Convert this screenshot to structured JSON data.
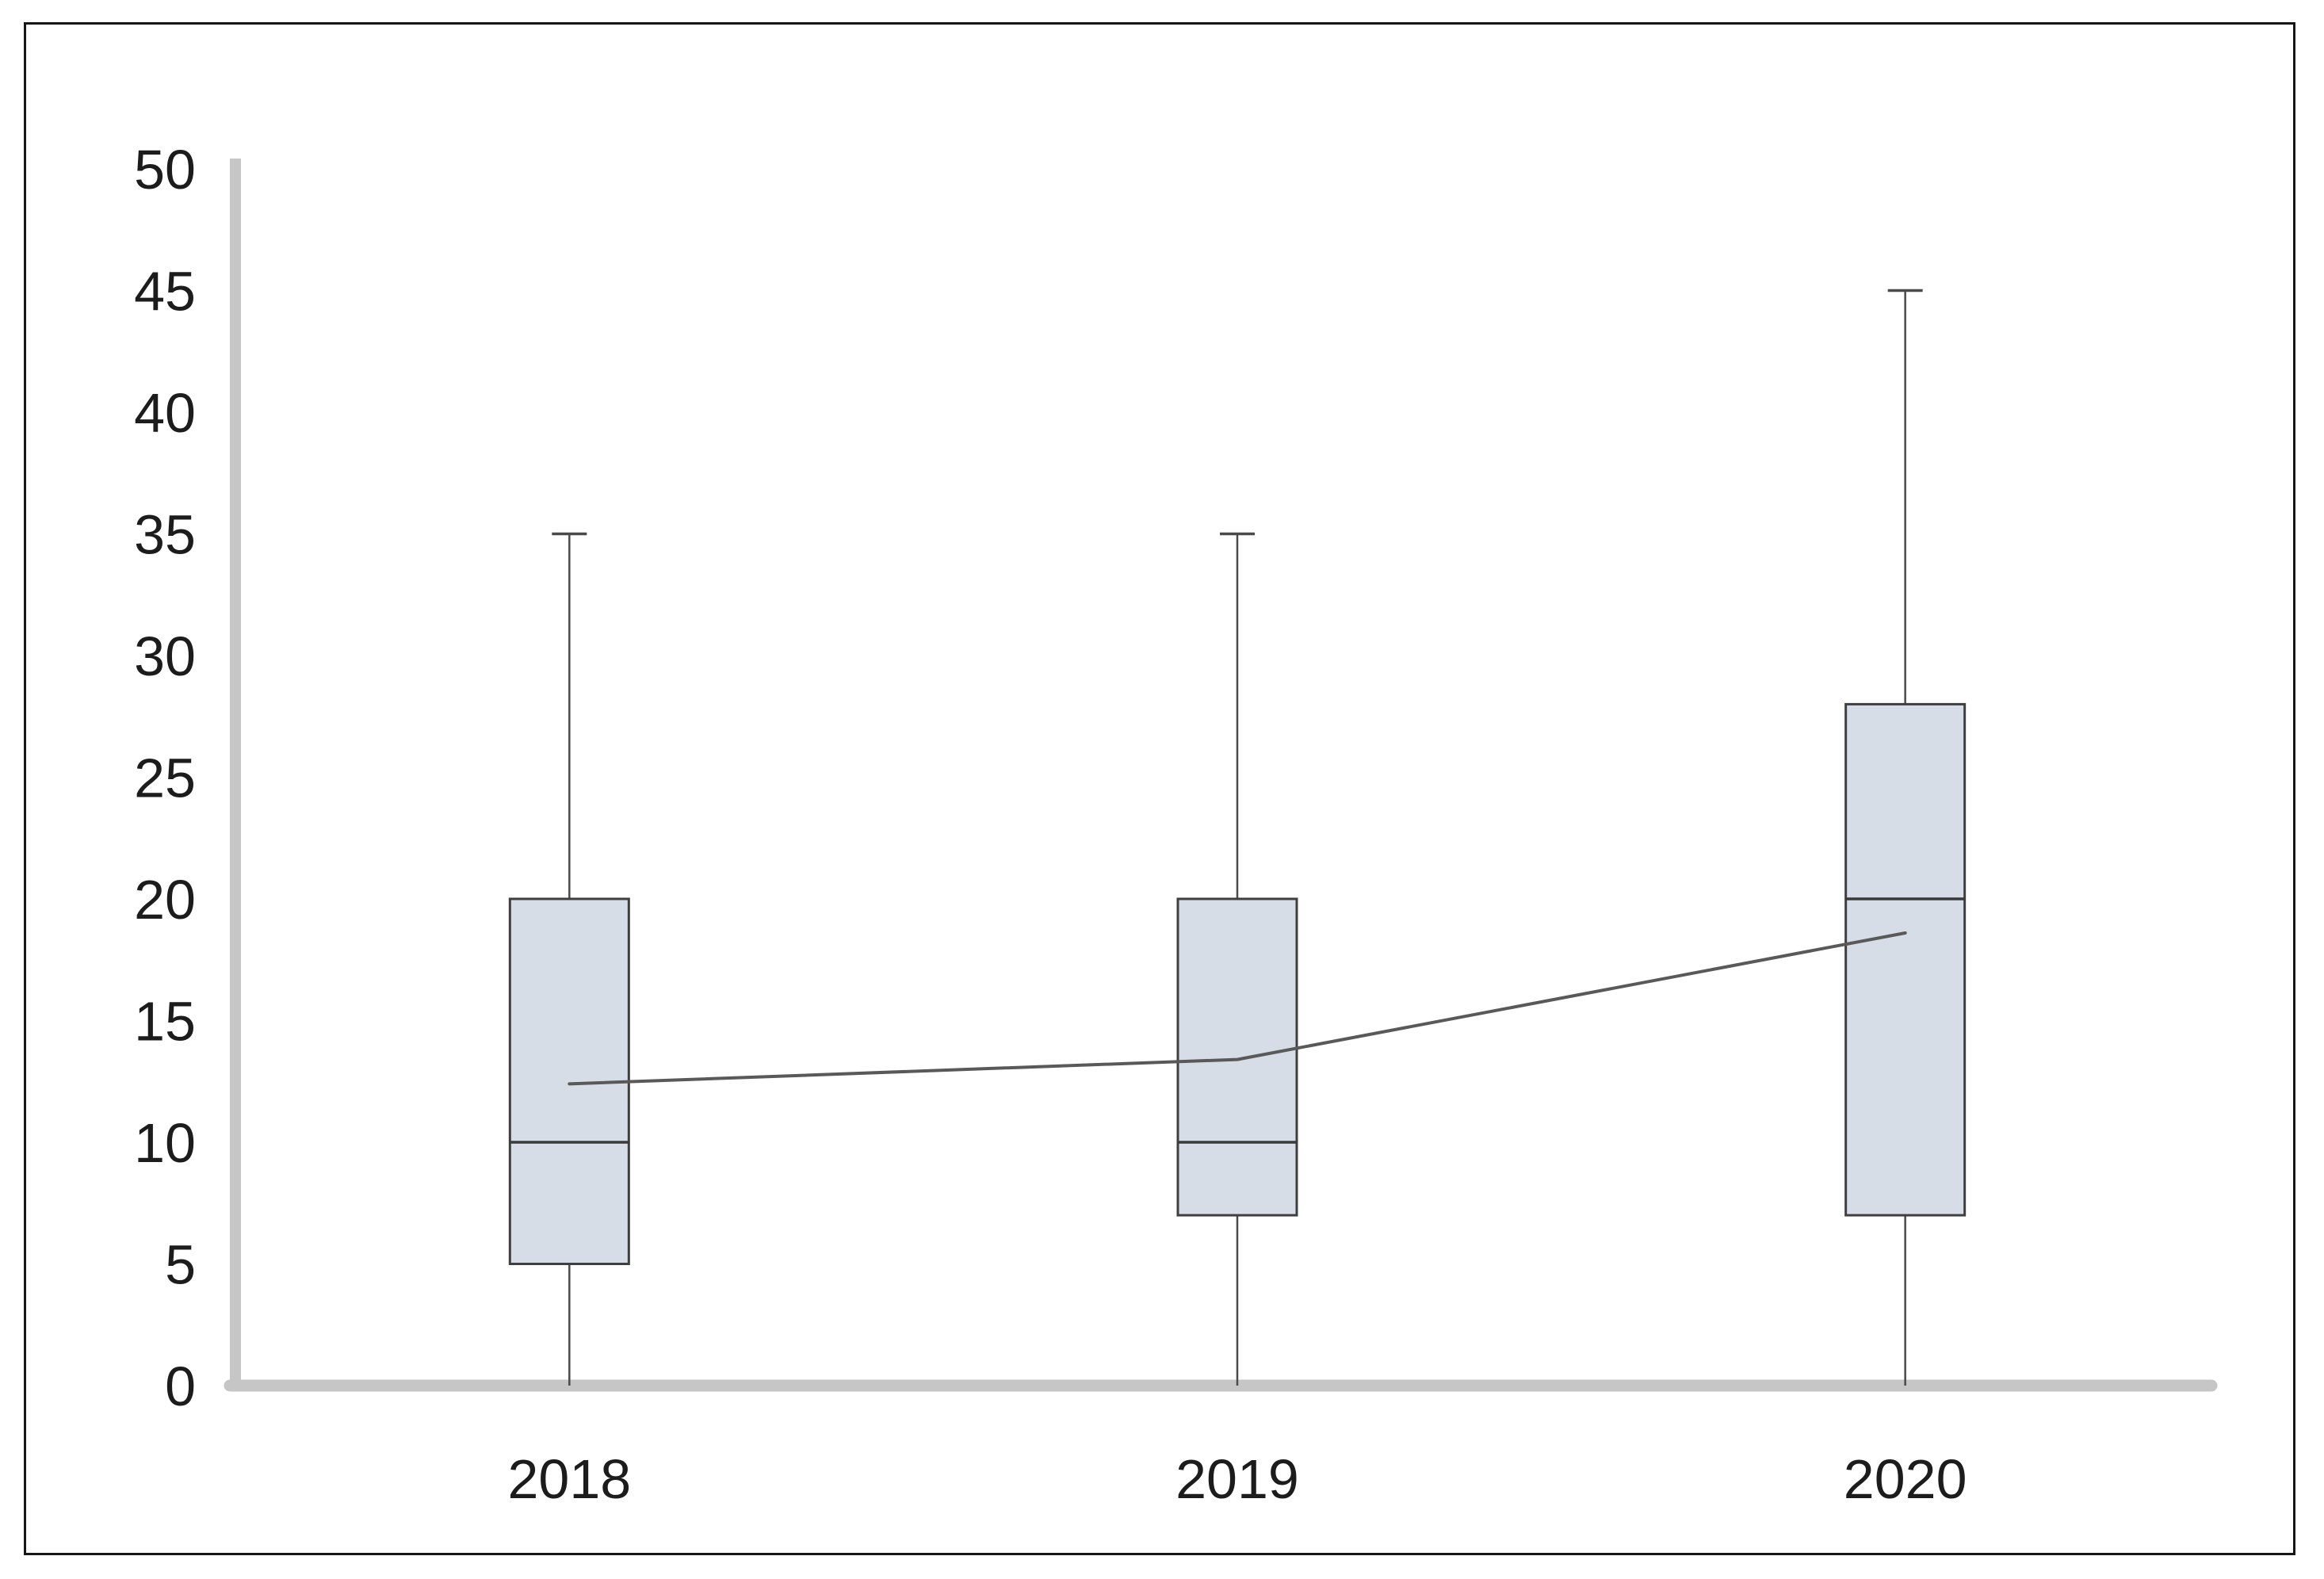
{
  "chart_data": {
    "type": "box",
    "title": "",
    "categories": [
      "2018",
      "2019",
      "2020"
    ],
    "series": [
      {
        "name": "2018",
        "min": 0,
        "q1": 5,
        "median": 10,
        "q3": 20,
        "max": 35,
        "mean": 12.4
      },
      {
        "name": "2019",
        "min": 0,
        "q1": 7,
        "median": 10,
        "q3": 20,
        "max": 35,
        "mean": 13.4
      },
      {
        "name": "2020",
        "min": 0,
        "q1": 7,
        "median": 20,
        "q3": 28,
        "max": 45,
        "mean": 18.6
      }
    ],
    "mean_line": {
      "name": "mean-trend-line",
      "values": [
        12.4,
        13.4,
        18.6
      ]
    },
    "y_axis": {
      "min": 0,
      "max": 50,
      "tick_step": 5,
      "tick_labels": [
        "0",
        "5",
        "10",
        "15",
        "20",
        "25",
        "30",
        "35",
        "40",
        "45",
        "50"
      ]
    },
    "x_axis": {
      "tick_labels": [
        "2018",
        "2019",
        "2020"
      ]
    },
    "grid": false,
    "legend": false,
    "colors": {
      "box_fill": "#d7dde6",
      "box_border": "#3f3f3f",
      "median_line": "#3a3a3a",
      "whisker": "#4a4a4a",
      "mean_line": "#595959",
      "axis_line": "#c6c6c6",
      "tick_text": "#1c1c1c",
      "frame": "#161616",
      "background": "#ffffff"
    }
  }
}
